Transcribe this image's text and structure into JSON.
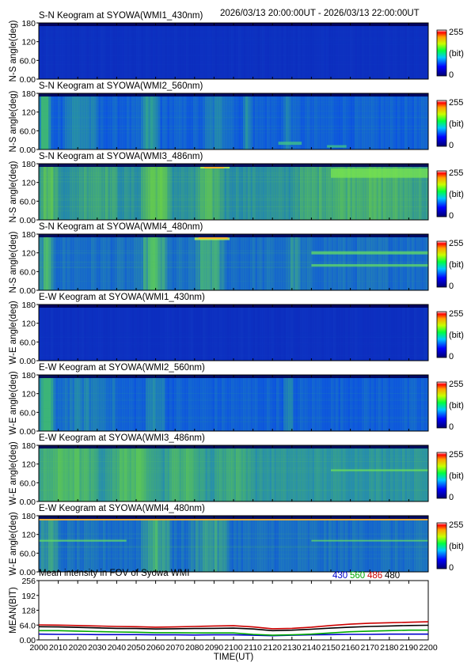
{
  "header": {
    "time_range": "2026/03/13 20:00:00UT - 2026/03/13 22:00:00UT"
  },
  "colorbar": {
    "max_label": "255",
    "unit_label": "(bit)",
    "min_label": "0"
  },
  "keogram_axis": {
    "ylim": [
      0,
      180
    ],
    "ticks": [
      "180",
      "120",
      "60.0",
      "0.00"
    ]
  },
  "panels": [
    {
      "title": "S-N Keogram at SYOWA(WMI1_430nm)",
      "ylabel": "N-S angle(deg)",
      "base": [
        12,
        42,
        190
      ],
      "mid": [
        14,
        55,
        195
      ],
      "hi": [
        18,
        70,
        200
      ],
      "bands": [],
      "arcs": [],
      "topline": null
    },
    {
      "title": "S-N Keogram at SYOWA(WMI2_560nm)",
      "ylabel": "N-S angle(deg)",
      "base": [
        10,
        70,
        225
      ],
      "mid": [
        20,
        120,
        215
      ],
      "hi": [
        60,
        180,
        120
      ],
      "bands": [
        {
          "t0": 2000,
          "t1": 2006,
          "lvl": 1.6
        },
        {
          "t0": 2012,
          "t1": 2030,
          "lvl": 1.1
        },
        {
          "t0": 2052,
          "t1": 2062,
          "lvl": 1.2
        },
        {
          "t0": 2085,
          "t1": 2100,
          "lvl": 1.0
        },
        {
          "t0": 2105,
          "t1": 2110,
          "lvl": 1.1
        },
        {
          "t0": 2126,
          "t1": 2130,
          "lvl": 1.0
        }
      ],
      "arcs": [
        {
          "t0": 2123,
          "t1": 2135,
          "a": 20,
          "w": 10,
          "lvl": 1.4
        },
        {
          "t0": 2148,
          "t1": 2158,
          "a": 10,
          "w": 8,
          "lvl": 1.4
        }
      ],
      "topline": null
    },
    {
      "title": "S-N Keogram at SYOWA(WMI3_486nm)",
      "ylabel": "N-S angle(deg)",
      "base": [
        25,
        120,
        200
      ],
      "mid": [
        60,
        170,
        110
      ],
      "hi": [
        110,
        210,
        70
      ],
      "bands": [
        {
          "t0": 2000,
          "t1": 2010,
          "lvl": 1.2
        },
        {
          "t0": 2020,
          "t1": 2040,
          "lvl": 1.0
        },
        {
          "t0": 2052,
          "t1": 2068,
          "lvl": 1.3
        },
        {
          "t0": 2080,
          "t1": 2095,
          "lvl": 1.1
        },
        {
          "t0": 2130,
          "t1": 2200,
          "lvl": 1.1
        }
      ],
      "arcs": [
        {
          "t0": 2083,
          "t1": 2098,
          "a": 170,
          "w": 10,
          "lvl": 2.2
        },
        {
          "t0": 2150,
          "t1": 2200,
          "a": 150,
          "w": 30,
          "lvl": 1.6
        }
      ],
      "topline": {
        "t0": 2085,
        "t1": 2095
      }
    },
    {
      "title": "S-N Keogram at SYOWA(WMI4_480nm)",
      "ylabel": "N-S angle(deg)",
      "base": [
        15,
        80,
        215
      ],
      "mid": [
        30,
        140,
        190
      ],
      "hi": [
        90,
        200,
        90
      ],
      "bands": [
        {
          "t0": 2000,
          "t1": 2008,
          "lvl": 1.2
        },
        {
          "t0": 2052,
          "t1": 2066,
          "lvl": 1.3
        },
        {
          "t0": 2080,
          "t1": 2095,
          "lvl": 1.2
        },
        {
          "t0": 2128,
          "t1": 2134,
          "lvl": 1.0
        }
      ],
      "arcs": [
        {
          "t0": 2080,
          "t1": 2098,
          "a": 165,
          "w": 8,
          "lvl": 2.0
        },
        {
          "t0": 2140,
          "t1": 2200,
          "a": 120,
          "w": 10,
          "lvl": 1.0
        },
        {
          "t0": 2140,
          "t1": 2200,
          "a": 80,
          "w": 8,
          "lvl": 1.0
        }
      ],
      "topline": {
        "t0": 2082,
        "t1": 2097
      }
    },
    {
      "title": "E-W Keogram at SYOWA(WMI1_430nm)",
      "ylabel": "W-E angle(deg)",
      "base": [
        12,
        42,
        190
      ],
      "mid": [
        14,
        55,
        195
      ],
      "hi": [
        18,
        70,
        200
      ],
      "bands": [],
      "arcs": [],
      "topline": null
    },
    {
      "title": "E-W Keogram at SYOWA(WMI2_560nm)",
      "ylabel": "W-E angle(deg)",
      "base": [
        10,
        70,
        225
      ],
      "mid": [
        20,
        120,
        215
      ],
      "hi": [
        60,
        180,
        120
      ],
      "bands": [
        {
          "t0": 2000,
          "t1": 2008,
          "lvl": 1.6
        },
        {
          "t0": 2010,
          "t1": 2040,
          "lvl": 1.0
        },
        {
          "t0": 2055,
          "t1": 2065,
          "lvl": 1.1
        },
        {
          "t0": 2126,
          "t1": 2131,
          "lvl": 1.0
        }
      ],
      "arcs": [],
      "topline": null
    },
    {
      "title": "E-W Keogram at SYOWA(WMI3_486nm)",
      "ylabel": "W-E angle(deg)",
      "base": [
        30,
        130,
        200
      ],
      "mid": [
        60,
        170,
        110
      ],
      "hi": [
        100,
        205,
        80
      ],
      "bands": [
        {
          "t0": 2000,
          "t1": 2030,
          "lvl": 1.2
        },
        {
          "t0": 2035,
          "t1": 2062,
          "lvl": 1.2
        },
        {
          "t0": 2065,
          "t1": 2085,
          "lvl": 1.1
        },
        {
          "t0": 2090,
          "t1": 2110,
          "lvl": 1.0
        }
      ],
      "arcs": [
        {
          "t0": 2150,
          "t1": 2200,
          "a": 100,
          "w": 6,
          "lvl": 1.5
        }
      ],
      "topline": null
    },
    {
      "title": "E-W Keogram at SYOWA(WMI4_480nm)",
      "ylabel": "W-E angle(deg)",
      "base": [
        15,
        80,
        215
      ],
      "mid": [
        30,
        140,
        190
      ],
      "hi": [
        90,
        200,
        90
      ],
      "bands": [
        {
          "t0": 2000,
          "t1": 2010,
          "lvl": 1.1
        },
        {
          "t0": 2052,
          "t1": 2068,
          "lvl": 1.2
        },
        {
          "t0": 2078,
          "t1": 2098,
          "lvl": 1.1
        }
      ],
      "arcs": [
        {
          "t0": 2000,
          "t1": 2045,
          "a": 100,
          "w": 6,
          "lvl": 1.2
        },
        {
          "t0": 2140,
          "t1": 2200,
          "a": 100,
          "w": 5,
          "lvl": 1.6
        }
      ],
      "topline": {
        "t0": 2000,
        "t1": 2200
      }
    }
  ],
  "mean_plot": {
    "title": "Mean intensity in FOV of Syowa WMI",
    "ylabel": "MEAN(BIT)",
    "xlabel": "TIME(UT)",
    "yticks": [
      "256",
      "192",
      "128",
      "64.0",
      "0.00"
    ],
    "xticks": [
      "2000",
      "2010",
      "2020",
      "2030",
      "2040",
      "2050",
      "2060",
      "2070",
      "2080",
      "2090",
      "2100",
      "2110",
      "2120",
      "2130",
      "2140",
      "2150",
      "2160",
      "2170",
      "2180",
      "2190",
      "2200"
    ]
  },
  "chart_data": {
    "type": "line",
    "title": "Mean intensity in FOV of Syowa WMI",
    "xlabel": "TIME(UT)",
    "ylabel": "MEAN(BIT)",
    "xlim": [
      2000,
      2200
    ],
    "ylim": [
      0,
      256
    ],
    "x": [
      2000,
      2010,
      2020,
      2030,
      2040,
      2050,
      2060,
      2070,
      2080,
      2090,
      2100,
      2110,
      2120,
      2130,
      2140,
      2150,
      2160,
      2170,
      2180,
      2190,
      2200
    ],
    "series": [
      {
        "name": "430",
        "color": "#0000cc",
        "values": [
          25,
          24,
          24,
          23,
          23,
          23,
          22,
          22,
          21,
          22,
          22,
          20,
          18,
          20,
          22,
          23,
          24,
          24,
          25,
          25,
          25
        ]
      },
      {
        "name": "560",
        "color": "#00aa00",
        "values": [
          40,
          40,
          38,
          36,
          34,
          33,
          31,
          31,
          30,
          30,
          30,
          24,
          20,
          22,
          25,
          30,
          35,
          38,
          40,
          42,
          42
        ]
      },
      {
        "name": "486",
        "color": "#cc0000",
        "values": [
          65,
          64,
          62,
          60,
          58,
          57,
          55,
          56,
          58,
          60,
          61,
          56,
          48,
          50,
          55,
          62,
          68,
          72,
          74,
          76,
          78
        ]
      },
      {
        "name": "480",
        "color": "#000000",
        "values": [
          57,
          56,
          54,
          52,
          50,
          49,
          47,
          48,
          49,
          50,
          51,
          47,
          40,
          42,
          46,
          51,
          55,
          58,
          60,
          62,
          63
        ]
      }
    ]
  }
}
